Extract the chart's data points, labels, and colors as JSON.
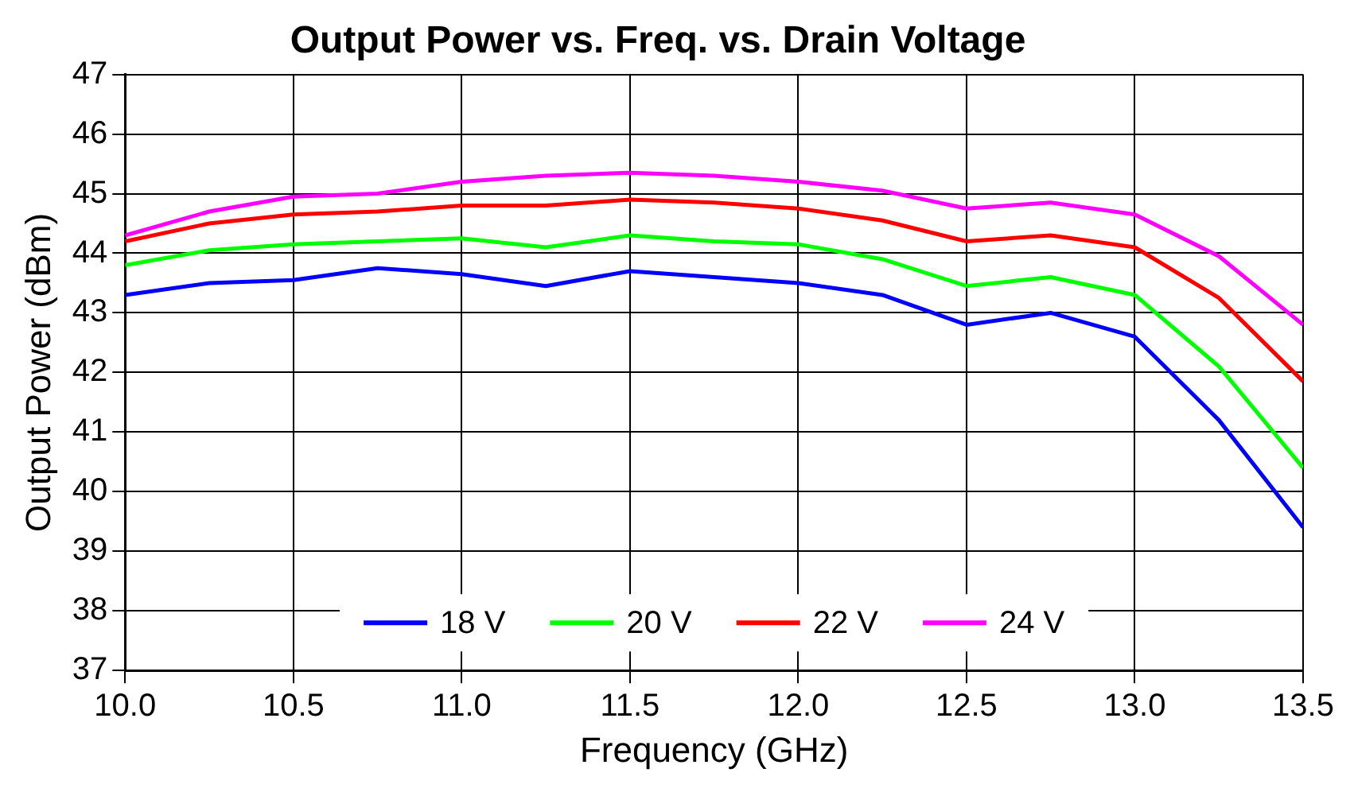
{
  "chart_data": {
    "type": "line",
    "title": "Output Power vs. Freq. vs. Drain Voltage",
    "xlabel": "Frequency (GHz)",
    "ylabel": "Output Power (dBm)",
    "x": [
      10,
      10.25,
      10.5,
      10.75,
      11,
      11.25,
      11.5,
      11.75,
      12,
      12.25,
      12.5,
      12.75,
      13,
      13.25,
      13.5
    ],
    "series": [
      {
        "name": "18 V",
        "color": "#0000ff",
        "values": [
          43.3,
          43.5,
          43.55,
          43.75,
          43.65,
          43.45,
          43.7,
          43.6,
          43.5,
          43.3,
          42.8,
          43.0,
          42.6,
          41.2,
          39.4
        ]
      },
      {
        "name": "20 V",
        "color": "#00ff00",
        "values": [
          43.8,
          44.05,
          44.15,
          44.2,
          44.25,
          44.1,
          44.3,
          44.2,
          44.15,
          43.9,
          43.45,
          43.6,
          43.3,
          42.1,
          40.4
        ]
      },
      {
        "name": "22 V",
        "color": "#ff0000",
        "values": [
          44.2,
          44.5,
          44.65,
          44.7,
          44.8,
          44.8,
          44.9,
          44.85,
          44.75,
          44.55,
          44.2,
          44.3,
          44.1,
          43.25,
          41.85
        ]
      },
      {
        "name": "24 V",
        "color": "#ff00ff",
        "values": [
          44.3,
          44.7,
          44.95,
          45.0,
          45.2,
          45.3,
          45.35,
          45.3,
          45.2,
          45.05,
          44.75,
          44.85,
          44.65,
          43.95,
          42.8
        ]
      }
    ],
    "xlim": [
      10,
      13.5
    ],
    "xticks": [
      {
        "value": 10,
        "label": "10.0"
      },
      {
        "value": 10.5,
        "label": "10.5"
      },
      {
        "value": 11,
        "label": "11.0"
      },
      {
        "value": 11.5,
        "label": "11.5"
      },
      {
        "value": 12,
        "label": "12.0"
      },
      {
        "value": 12.5,
        "label": "12.5"
      },
      {
        "value": 13,
        "label": "13.0"
      },
      {
        "value": 13.5,
        "label": "13.5"
      }
    ],
    "ylim": [
      37,
      47
    ],
    "yticks": [
      37,
      38,
      39,
      40,
      41,
      42,
      43,
      44,
      45,
      46,
      47
    ],
    "grid": true,
    "legend": "bottom",
    "marker": "none",
    "line_style": "solid"
  }
}
